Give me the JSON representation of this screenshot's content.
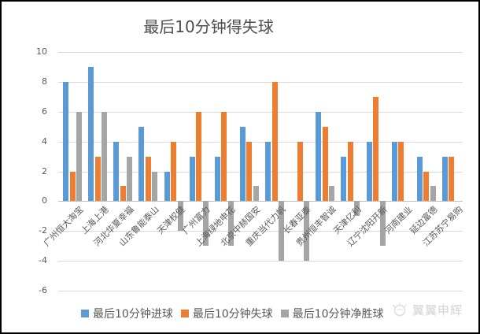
{
  "title": "最后10分钟得失球",
  "colors": {
    "series_goals": "#5B9BD5",
    "series_conceded": "#ED7D31",
    "series_net": "#A5A5A5",
    "gridline": "#d9d9d9",
    "zero_axis": "#bfbfbf",
    "text": "#595959",
    "watermark": "#d6d6d6"
  },
  "watermark": {
    "text": "翼翼申辉",
    "logo": "sun-ball-logo-icon"
  },
  "chart_data": {
    "type": "bar",
    "title": "最后10分钟得失球",
    "categories": [
      "广州恒大淘宝",
      "上海上港",
      "河北华夏幸福",
      "山东鲁能泰山",
      "天津权健",
      "广州富力",
      "上海绿地申花",
      "北京中赫国安",
      "重庆当代力帆",
      "长春亚泰",
      "贵州恒丰智诚",
      "天津亿利",
      "辽宁沈阳开新",
      "河南建业",
      "延边富德",
      "江苏苏宁易购"
    ],
    "series": [
      {
        "name": "最后10分钟进球",
        "color": "#5B9BD5",
        "values": [
          8,
          9,
          4,
          5,
          2,
          3,
          3,
          5,
          4,
          0,
          6,
          3,
          4,
          4,
          3,
          3
        ]
      },
      {
        "name": "最后10分钟失球",
        "color": "#ED7D31",
        "values": [
          2,
          3,
          1,
          3,
          4,
          6,
          6,
          4,
          8,
          4,
          5,
          4,
          7,
          4,
          2,
          3
        ]
      },
      {
        "name": "最后10分钟净胜球",
        "color": "#A5A5A5",
        "values": [
          6,
          6,
          3,
          2,
          -2,
          -3,
          -3,
          1,
          -4,
          -4,
          1,
          -1,
          -3,
          0,
          1,
          0
        ]
      }
    ],
    "ylim": [
      -6,
      10
    ],
    "yticks": [
      10,
      8,
      6,
      4,
      2,
      0,
      -2,
      -4,
      -6
    ],
    "xlabel": "",
    "ylabel": "",
    "grid": true,
    "legend_position": "bottom",
    "x_label_rotation_deg": 45
  }
}
